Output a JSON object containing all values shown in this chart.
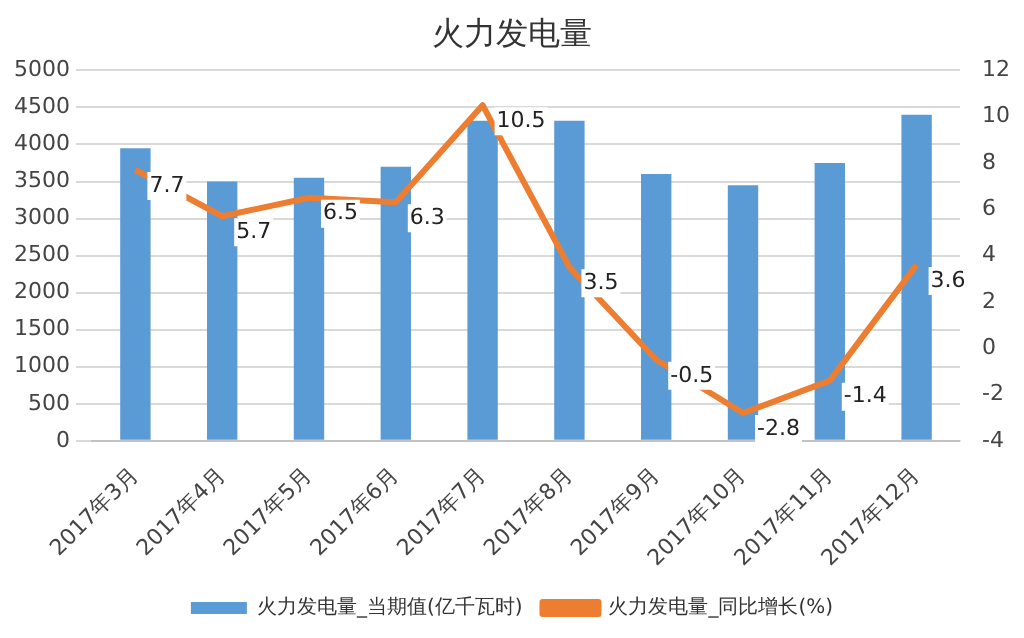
{
  "chart_data": {
    "type": "bar",
    "title": "火力发电量",
    "categories": [
      "2017年3月",
      "2017年4月",
      "2017年5月",
      "2017年6月",
      "2017年7月",
      "2017年8月",
      "2017年9月",
      "2017年10月",
      "2017年11月",
      "2017年12月"
    ],
    "series": [
      {
        "name": "火力发电量_当期值(亿千瓦时)",
        "color": "#5b9bd5",
        "values": [
          3950,
          3500,
          3550,
          3700,
          4320,
          4320,
          3600,
          3450,
          3750,
          4400
        ]
      },
      {
        "name": "火力发电量_同比增长(%)",
        "type": "line",
        "axis": "y2",
        "color": "#ed7d31",
        "marker": "none",
        "values": [
          7.7,
          5.7,
          6.5,
          6.3,
          10.5,
          3.5,
          -0.5,
          -2.8,
          -1.4,
          3.6
        ],
        "value_labels": [
          "7.7",
          "5.7",
          "6.5",
          "6.3",
          "10.5",
          "3.5",
          "-0.5",
          "-2.8",
          "-1.4",
          "3.6"
        ]
      }
    ],
    "ylim": [
      0,
      5000
    ],
    "yticks": [
      0,
      500,
      1000,
      1500,
      2000,
      2500,
      3000,
      3500,
      4000,
      4500,
      5000
    ],
    "y2lim": [
      -4,
      12
    ],
    "y2ticks": [
      -4,
      -2,
      0,
      2,
      4,
      6,
      8,
      10,
      12
    ],
    "grid": "y",
    "legend": "bottom"
  }
}
